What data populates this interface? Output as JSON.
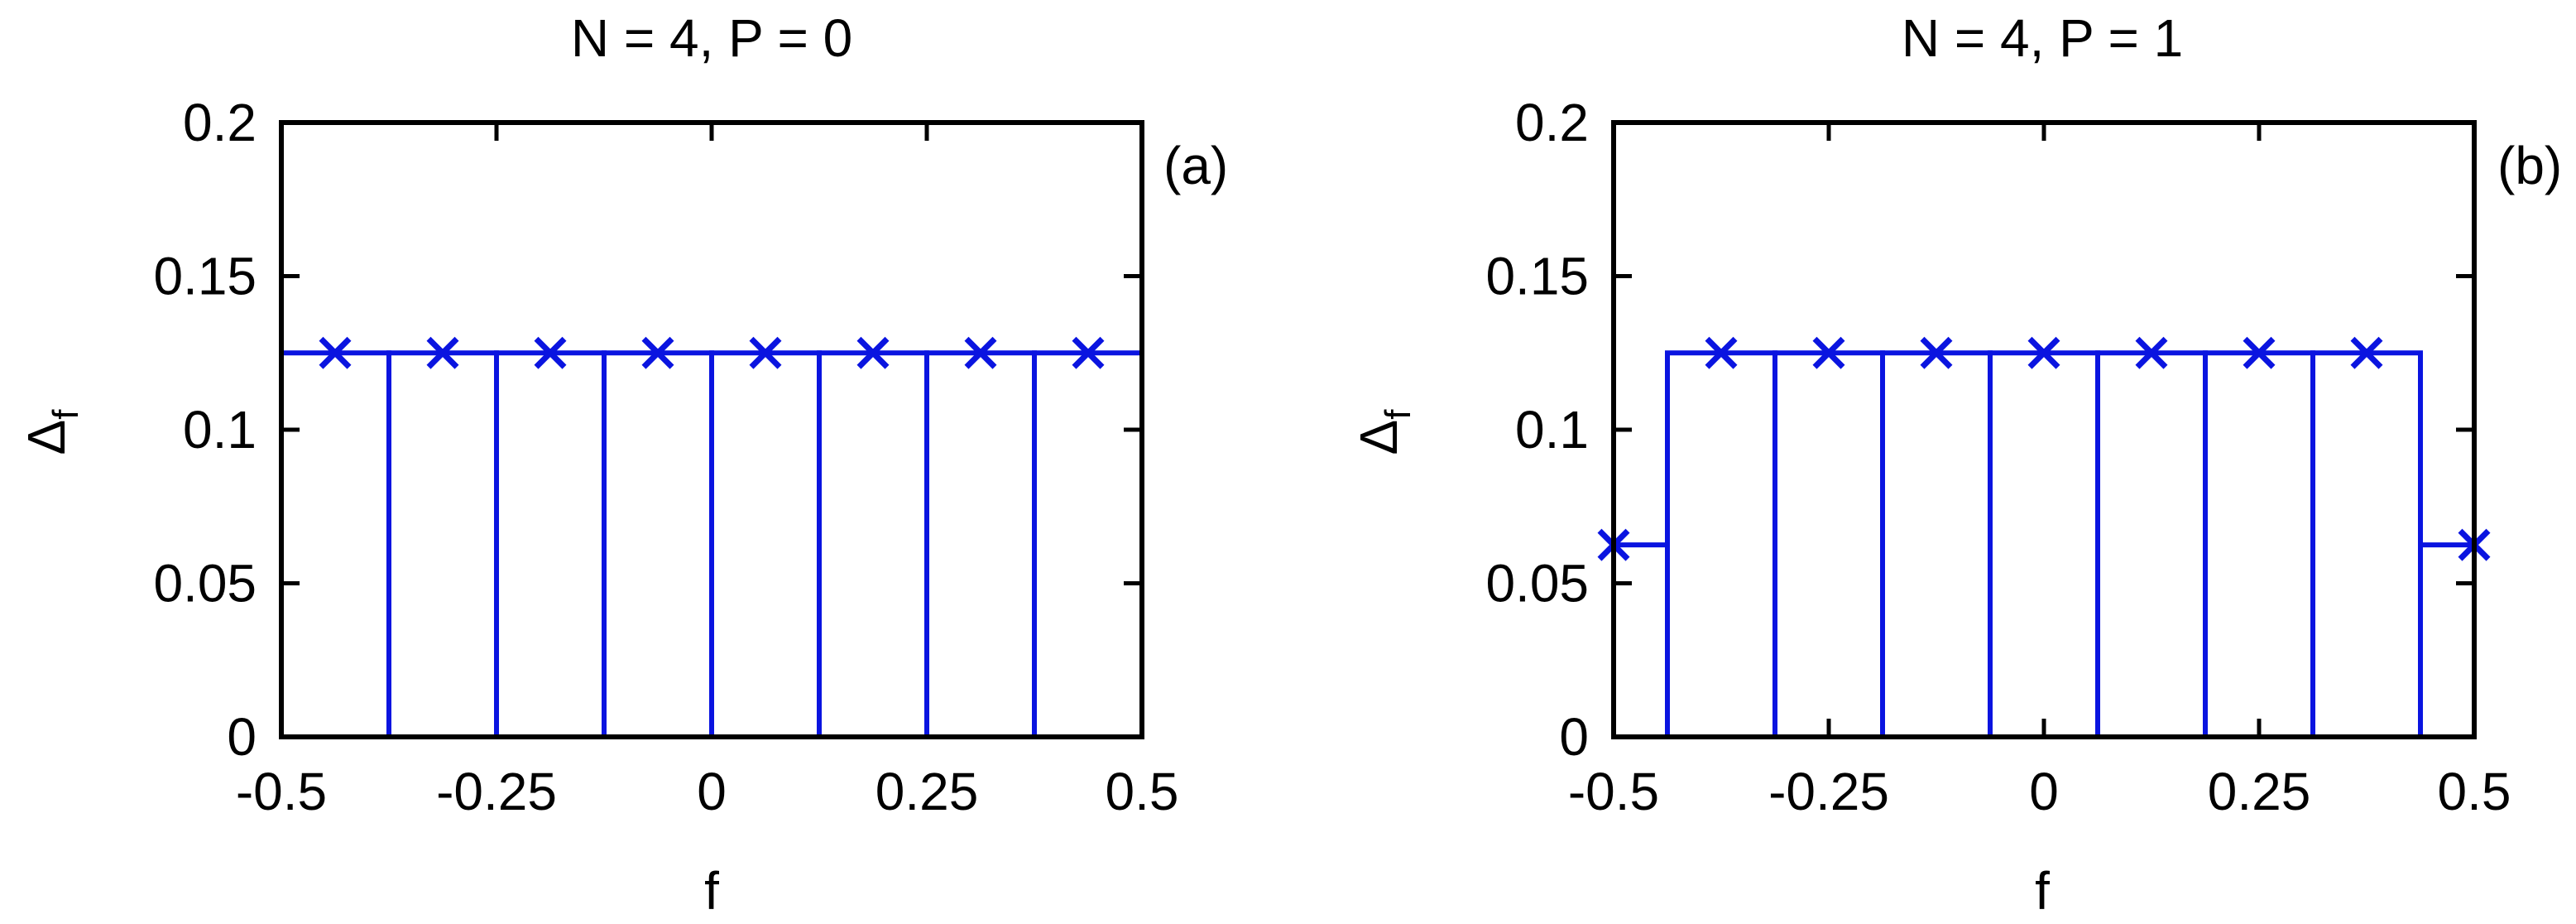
{
  "colors": {
    "series": "#0a14e0",
    "axis": "#000000",
    "background": "#ffffff"
  },
  "chart_data": [
    {
      "type": "bar",
      "title": "N = 4, P = 0",
      "panel_label": "(a)",
      "xlabel": "f",
      "ylabel_main": "Δ",
      "ylabel_sub": "f",
      "xlim": [
        -0.5,
        0.5
      ],
      "ylim": [
        0,
        0.2
      ],
      "x_ticks": [
        -0.5,
        -0.25,
        0,
        0.25,
        0.5
      ],
      "x_tick_labels": [
        "-0.5",
        "-0.25",
        "0",
        "0.25",
        "0.5"
      ],
      "y_ticks": [
        0,
        0.05,
        0.1,
        0.15,
        0.2
      ],
      "y_tick_labels": [
        "0",
        "0.05",
        "0.1",
        "0.15",
        "0.2"
      ],
      "bin_edges": [
        -0.5,
        -0.375,
        -0.25,
        -0.125,
        0,
        0.125,
        0.25,
        0.375,
        0.5
      ],
      "values": [
        0.125,
        0.125,
        0.125,
        0.125,
        0.125,
        0.125,
        0.125,
        0.125
      ],
      "markers": {
        "x": [
          -0.4375,
          -0.3125,
          -0.1875,
          -0.0625,
          0.0625,
          0.1875,
          0.3125,
          0.4375
        ],
        "y": [
          0.125,
          0.125,
          0.125,
          0.125,
          0.125,
          0.125,
          0.125,
          0.125
        ]
      }
    },
    {
      "type": "bar",
      "title": "N = 4, P = 1",
      "panel_label": "(b)",
      "xlabel": "f",
      "ylabel_main": "Δ",
      "ylabel_sub": "f",
      "xlim": [
        -0.5,
        0.5
      ],
      "ylim": [
        0,
        0.2
      ],
      "x_ticks": [
        -0.5,
        -0.25,
        0,
        0.25,
        0.5
      ],
      "x_tick_labels": [
        "-0.5",
        "-0.25",
        "0",
        "0.25",
        "0.5"
      ],
      "y_ticks": [
        0,
        0.05,
        0.1,
        0.15,
        0.2
      ],
      "y_tick_labels": [
        "0",
        "0.05",
        "0.1",
        "0.15",
        "0.2"
      ],
      "bin_edges": [
        -0.5,
        -0.4375,
        -0.3125,
        -0.1875,
        -0.0625,
        0.0625,
        0.1875,
        0.3125,
        0.4375,
        0.5
      ],
      "values": [
        0.0625,
        0.125,
        0.125,
        0.125,
        0.125,
        0.125,
        0.125,
        0.125,
        0.0625
      ],
      "markers": {
        "x": [
          -0.5,
          -0.375,
          -0.25,
          -0.125,
          0,
          0.125,
          0.25,
          0.375,
          0.5
        ],
        "y": [
          0.0625,
          0.125,
          0.125,
          0.125,
          0.125,
          0.125,
          0.125,
          0.125,
          0.0625
        ]
      }
    }
  ]
}
